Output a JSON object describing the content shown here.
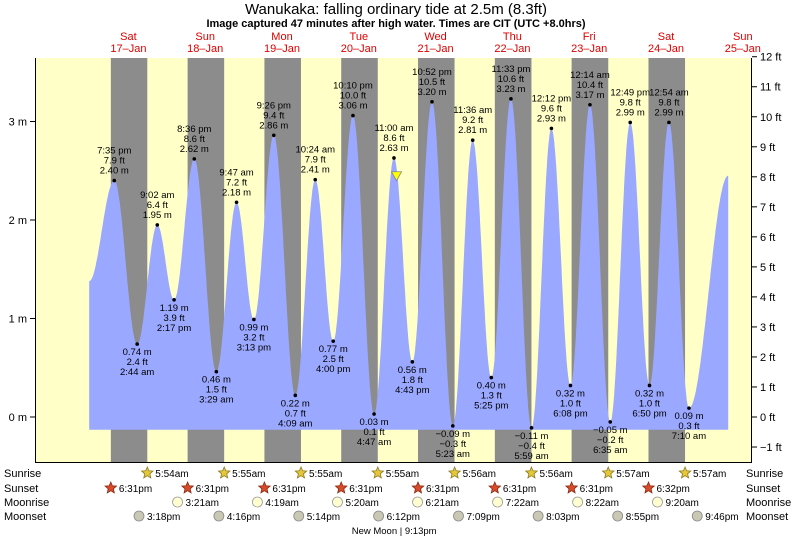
{
  "header": {
    "title": "Wanukaka: falling  ordinary tide at 2.5m (8.3ft)",
    "subtitle": "Image captured 47 minutes after high water. Times are CIT (UTC +8.0hrs)"
  },
  "colors": {
    "day_bg": "#ffffc8",
    "night_bg": "#8c8c8c",
    "tide_fill": "#9aa8ff",
    "day_label": "#dd0000",
    "text": "#000000",
    "marker": "#ffff00"
  },
  "days": [
    {
      "dow": "Sat",
      "date": "17–Jan"
    },
    {
      "dow": "Sun",
      "date": "18–Jan"
    },
    {
      "dow": "Mon",
      "date": "19–Jan"
    },
    {
      "dow": "Tue",
      "date": "20–Jan"
    },
    {
      "dow": "Wed",
      "date": "21–Jan"
    },
    {
      "dow": "Thu",
      "date": "22–Jan"
    },
    {
      "dow": "Fri",
      "date": "23–Jan"
    },
    {
      "dow": "Sat",
      "date": "24–Jan"
    },
    {
      "dow": "Sun",
      "date": "25–Jan"
    }
  ],
  "rows": {
    "sunrise": "Sunrise",
    "sunset": "Sunset",
    "moonrise": "Moonrise",
    "moonset": "Moonset"
  },
  "sunrise_times": [
    "5:54am",
    "5:55am",
    "5:55am",
    "5:55am",
    "5:56am",
    "5:56am",
    "5:57am",
    "5:57am"
  ],
  "sunset_times": [
    "6:31pm",
    "6:31pm",
    "6:31pm",
    "6:31pm",
    "6:31pm",
    "6:31pm",
    "6:31pm",
    "6:32pm"
  ],
  "moonrise_times": [
    "3:21am",
    "4:19am",
    "5:20am",
    "6:21am",
    "7:22am",
    "8:22am",
    "9:20am"
  ],
  "moonset_times": [
    "3:18pm",
    "4:16pm",
    "5:14pm",
    "6:12pm",
    "7:09pm",
    "8:03pm",
    "8:55pm",
    "9:46pm"
  ],
  "new_moon": "New Moon | 9:13pm",
  "chart_data": {
    "type": "area",
    "title": "Wanukaka: falling  ordinary tide at 2.5m (8.3ft)",
    "y_left": {
      "unit": "m",
      "range": [
        -0.45,
        3.7
      ],
      "ticks": [
        0,
        1,
        2,
        3
      ],
      "tick_labels": [
        "0 m",
        "1 m",
        "2 m",
        "3 m"
      ]
    },
    "y_right": {
      "unit": "ft",
      "ticks": [
        -1,
        0,
        1,
        2,
        3,
        4,
        5,
        6,
        7,
        8,
        9,
        10,
        11,
        12
      ],
      "tick_labels": [
        "−1 ft",
        "0 ft",
        "1 ft",
        "2 ft",
        "3 ft",
        "4 ft",
        "5 ft",
        "6 ft",
        "7 ft",
        "8 ft",
        "9 ft",
        "10 ft",
        "11 ft",
        "12 ft"
      ]
    },
    "x": {
      "unit": "days from Sat 17-Jan 00:00",
      "range": [
        -0.11,
        8.38
      ]
    },
    "start": {
      "t": -0.01,
      "h": 1.38
    },
    "end": {
      "t": 8.31,
      "h": 2.45
    },
    "extrema": [
      {
        "t": 0.316,
        "h": 2.4,
        "time": "7:35 pm",
        "ft": "7.9 ft",
        "m": "2.40 m",
        "type": "high"
      },
      {
        "t": 0.614,
        "h": 0.74,
        "time": "2:44 am",
        "ft": "2.4 ft",
        "m": "0.74 m",
        "type": "low"
      },
      {
        "t": 0.876,
        "h": 1.95,
        "time": "9:02 am",
        "ft": "6.4 ft",
        "m": "1.95 m",
        "type": "high"
      },
      {
        "t": 1.095,
        "h": 1.19,
        "time": "2:17 pm",
        "ft": "3.9 ft",
        "m": "1.19 m",
        "type": "low"
      },
      {
        "t": 1.358,
        "h": 2.62,
        "time": "8:36 pm",
        "ft": "8.6 ft",
        "m": "2.62 m",
        "type": "high"
      },
      {
        "t": 1.645,
        "h": 0.46,
        "time": "3:29 am",
        "ft": "1.5 ft",
        "m": "0.46 m",
        "type": "low"
      },
      {
        "t": 1.908,
        "h": 2.18,
        "time": "9:47 am",
        "ft": "7.2 ft",
        "m": "2.18 m",
        "type": "high"
      },
      {
        "t": 2.134,
        "h": 0.99,
        "time": "3:13 pm",
        "ft": "3.2 ft",
        "m": "0.99 m",
        "type": "low"
      },
      {
        "t": 2.393,
        "h": 2.86,
        "time": "9:26 pm",
        "ft": "9.4 ft",
        "m": "2.86 m",
        "type": "high"
      },
      {
        "t": 2.673,
        "h": 0.22,
        "time": "4:09 am",
        "ft": "0.7 ft",
        "m": "0.22 m",
        "type": "low"
      },
      {
        "t": 2.933,
        "h": 2.41,
        "time": "10:24 am",
        "ft": "7.9 ft",
        "m": "2.41 m",
        "type": "high"
      },
      {
        "t": 3.167,
        "h": 0.77,
        "time": "4:00 pm",
        "ft": "2.5 ft",
        "m": "0.77 m",
        "type": "low"
      },
      {
        "t": 3.424,
        "h": 3.06,
        "time": "10:10 pm",
        "ft": "10.0 ft",
        "m": "3.06 m",
        "type": "high"
      },
      {
        "t": 3.699,
        "h": 0.03,
        "time": "4:47 am",
        "ft": "0.1 ft",
        "m": "0.03 m",
        "type": "low"
      },
      {
        "t": 3.958,
        "h": 2.63,
        "time": "11:00 am",
        "ft": "8.6 ft",
        "m": "2.63 m",
        "type": "high"
      },
      {
        "t": 4.197,
        "h": 0.56,
        "time": "4:43 pm",
        "ft": "1.8 ft",
        "m": "0.56 m",
        "type": "low"
      },
      {
        "t": 4.453,
        "h": 3.2,
        "time": "10:52 pm",
        "ft": "10.5 ft",
        "m": "3.20 m",
        "type": "high"
      },
      {
        "t": 4.724,
        "h": -0.09,
        "time": "5:23 am",
        "ft": "−0.3 ft",
        "m": "−0.09 m",
        "type": "low"
      },
      {
        "t": 4.983,
        "h": 2.81,
        "time": "11:36 am",
        "ft": "9.2 ft",
        "m": "2.81 m",
        "type": "high"
      },
      {
        "t": 5.225,
        "h": 0.4,
        "time": "5:25 pm",
        "ft": "1.3 ft",
        "m": "0.40 m",
        "type": "low"
      },
      {
        "t": 5.481,
        "h": 3.23,
        "time": "11:33 pm",
        "ft": "10.6 ft",
        "m": "3.23 m",
        "type": "high"
      },
      {
        "t": 5.749,
        "h": -0.11,
        "time": "5:59 am",
        "ft": "−0.4 ft",
        "m": "−0.11 m",
        "type": "low"
      },
      {
        "t": 6.008,
        "h": 2.93,
        "time": "12:12 pm",
        "ft": "9.6 ft",
        "m": "2.93 m",
        "type": "high"
      },
      {
        "t": 6.256,
        "h": 0.32,
        "time": "6:08 pm",
        "ft": "1.0 ft",
        "m": "0.32 m",
        "type": "low"
      },
      {
        "t": 6.51,
        "h": 3.17,
        "time": "12:14 am",
        "ft": "10.4 ft",
        "m": "3.17 m",
        "type": "high"
      },
      {
        "t": 6.774,
        "h": -0.05,
        "time": "6:35 am",
        "ft": "−0.2 ft",
        "m": "−0.05 m",
        "type": "low"
      },
      {
        "t": 7.034,
        "h": 2.99,
        "time": "12:49 pm",
        "ft": "9.8 ft",
        "m": "2.99 m",
        "type": "high"
      },
      {
        "t": 7.285,
        "h": 0.32,
        "time": "6:50 pm",
        "ft": "1.0 ft",
        "m": "0.32 m",
        "type": "low"
      },
      {
        "t": 7.538,
        "h": 2.99,
        "time": "12:54 am",
        "ft": "9.8 ft",
        "m": "2.99 m",
        "type": "high"
      },
      {
        "t": 7.799,
        "h": 0.09,
        "time": "7:10 am",
        "ft": "0.3 ft",
        "m": "0.09 m",
        "type": "low"
      }
    ],
    "sunrise_t": [
      0.746,
      1.747,
      2.747,
      3.747,
      4.747,
      5.748,
      6.748,
      7.748
    ],
    "sunset_t": [
      0.271,
      1.271,
      2.271,
      3.271,
      4.271,
      5.271,
      6.271,
      7.272
    ],
    "moonrise_t": [
      1.14,
      2.18,
      3.222,
      4.265,
      5.307,
      6.349,
      7.389
    ],
    "moonset_t": [
      0.638,
      1.678,
      2.718,
      3.758,
      4.798,
      5.835,
      6.871,
      7.907
    ],
    "current": {
      "t": 3.991,
      "h": 2.5,
      "label": "falling  ordinary tide at 2.5m (8.3ft)"
    }
  }
}
